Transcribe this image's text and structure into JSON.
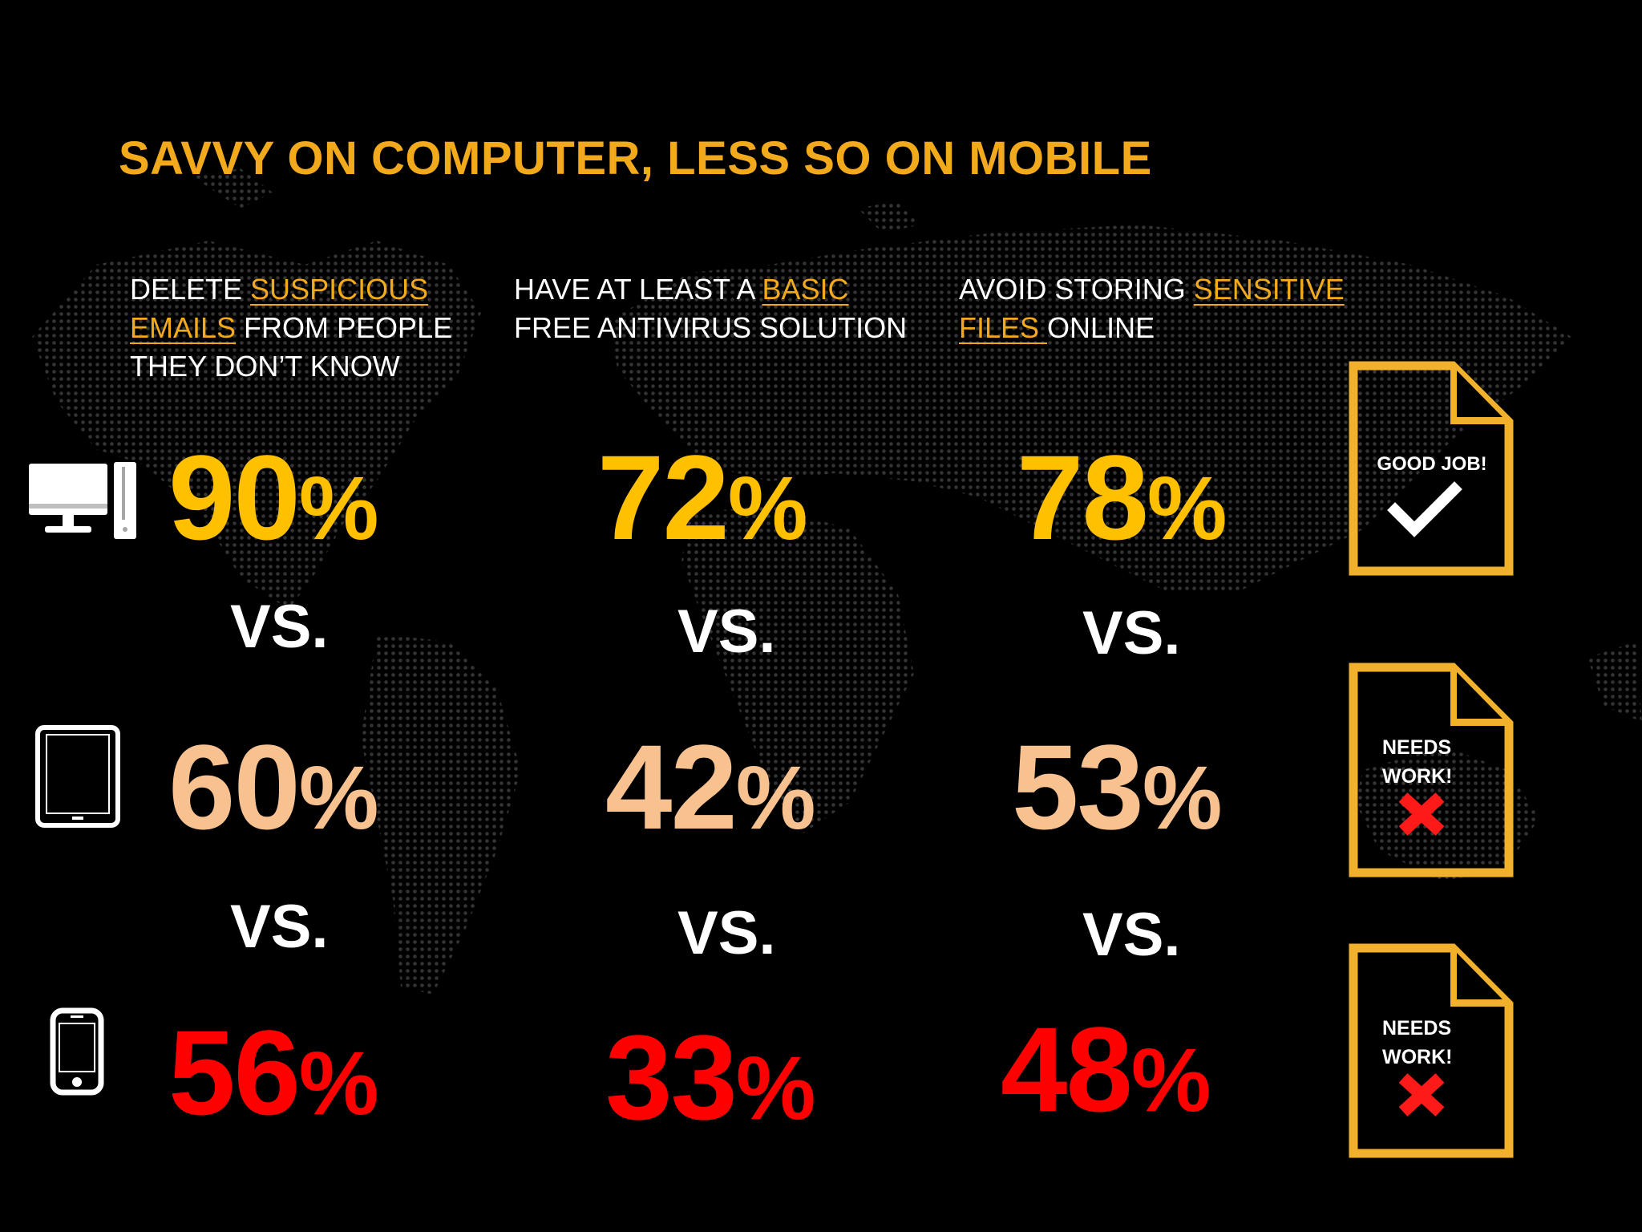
{
  "title": "SAVVY ON COMPUTER, LESS SO ON MOBILE",
  "columns": [
    {
      "lines": [
        [
          {
            "t": "DELETE ",
            "h": false
          },
          {
            "t": "SUSPICIOUS",
            "h": true
          }
        ],
        [
          {
            "t": "EMAILS",
            "h": true
          },
          {
            "t": " FROM PEOPLE",
            "h": false
          }
        ],
        [
          {
            "t": "THEY DON’T KNOW",
            "h": false
          }
        ]
      ]
    },
    {
      "lines": [
        [
          {
            "t": "HAVE AT LEAST A ",
            "h": false
          },
          {
            "t": "BASIC",
            "h": true
          }
        ],
        [
          {
            "t": "FREE ANTIVIRUS SOLUTION",
            "h": false
          }
        ]
      ]
    },
    {
      "lines": [
        [
          {
            "t": "AVOID STORING ",
            "h": false
          },
          {
            "t": "SENSITIVE",
            "h": true
          }
        ],
        [
          {
            "t": "FILES ",
            "h": true
          },
          {
            "t": "ONLINE",
            "h": false
          }
        ]
      ]
    }
  ],
  "rows": [
    {
      "device": "desktop-computer-icon",
      "color": "#ffc000",
      "stats": [
        {
          "num": "90",
          "pct": "%"
        },
        {
          "num": "72",
          "pct": "%"
        },
        {
          "num": "78",
          "pct": "%"
        }
      ]
    },
    {
      "device": "tablet-icon",
      "color": "#f8c190",
      "stats": [
        {
          "num": "60",
          "pct": "%"
        },
        {
          "num": "42",
          "pct": "%"
        },
        {
          "num": "53",
          "pct": "%"
        }
      ]
    },
    {
      "device": "smartphone-icon",
      "color": "#ff0000",
      "stats": [
        {
          "num": "56",
          "pct": "%"
        },
        {
          "num": "33",
          "pct": "%"
        },
        {
          "num": "48",
          "pct": "%"
        }
      ]
    }
  ],
  "vs_label": "VS.",
  "badges": [
    {
      "lines": [
        "GOOD JOB!"
      ],
      "icon": "checkmark-icon"
    },
    {
      "lines": [
        "NEEDS",
        "WORK!"
      ],
      "icon": "red-x-icon"
    },
    {
      "lines": [
        "NEEDS",
        "WORK!"
      ],
      "icon": "red-x-icon"
    }
  ],
  "colors": {
    "accent": "#f2a91c",
    "background": "#000000",
    "badge_border": "#f2b12c",
    "x_mark": "#ff1a1a"
  }
}
